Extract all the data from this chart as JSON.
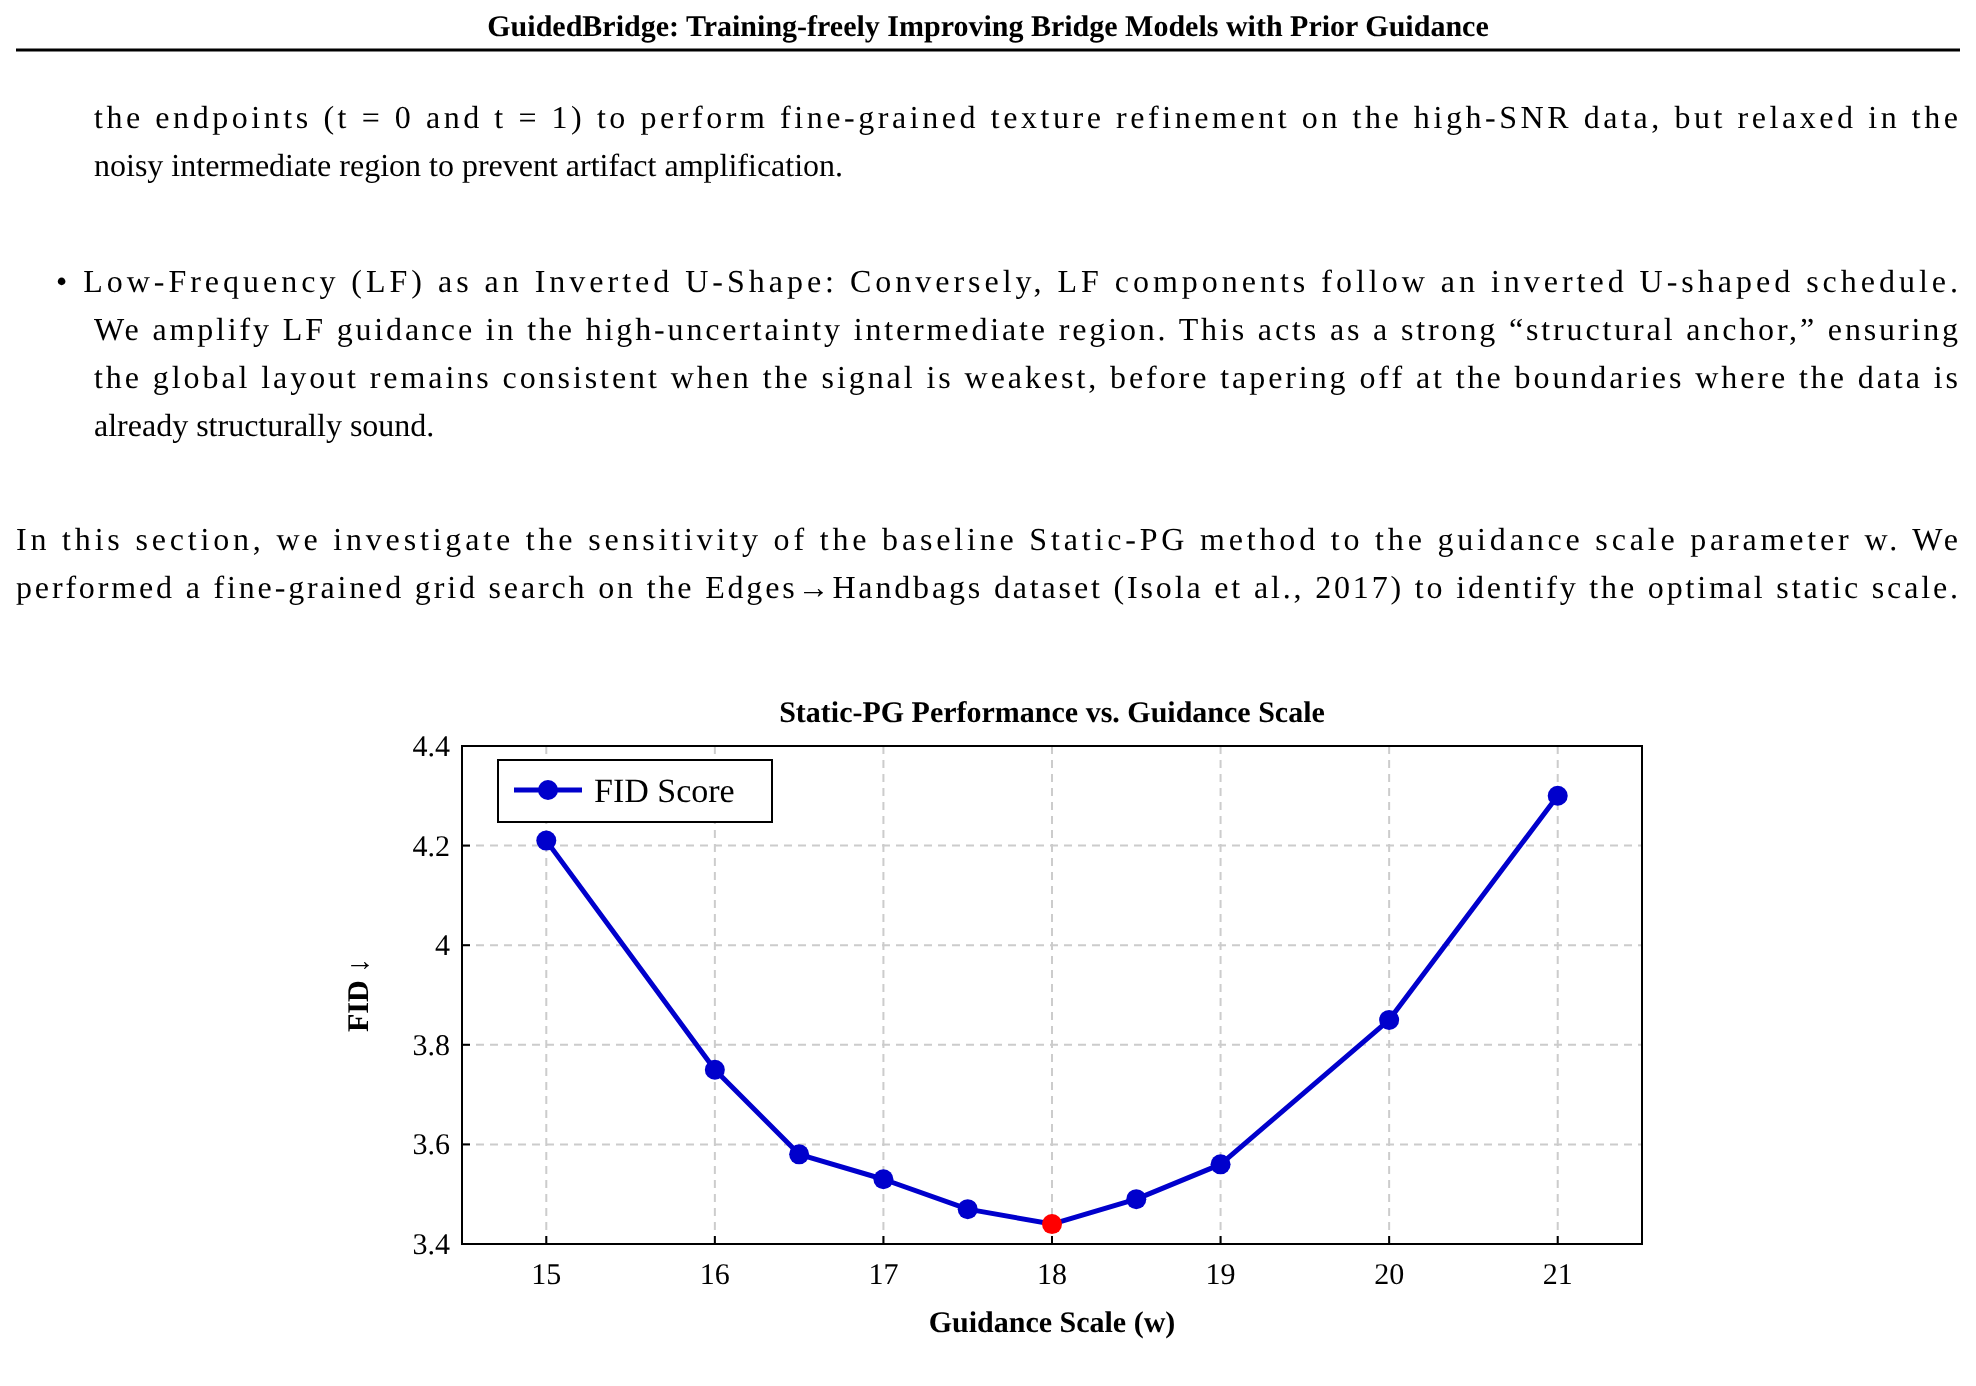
{
  "chart_data": {
    "type": "line",
    "title": "Static-PG Performance vs. Guidance Scale",
    "xlabel": "Guidance Scale (w)",
    "ylabel": "FID ↓",
    "annotations": [
      "GuidedBridge: Training-freely Improving Bridge Models with Prior Guidance",
      "the endpoints (t = 0 and t = 1) to perform fine-grained texture refinement on the high-SNR data, but relaxed in the",
      "noisy intermediate region to prevent artifact amplification.",
      "• Low-Frequency (LF) as an Inverted U-Shape: Conversely, LF components follow an inverted U-shaped schedule.",
      "We amplify LF guidance in the high-uncertainty intermediate region. This acts as a strong “structural anchor,” ensuring",
      "the global layout remains consistent when the signal is weakest, before tapering off at the boundaries where the data is",
      "already structurally sound.",
      "In this section, we investigate the sensitivity of the baseline Static-PG method to the guidance scale parameter w. We",
      "performed a fine-grained grid search on the Edges→Handbags dataset (Isola et al., 2017) to identify the optimal static scale."
    ],
    "x": [
      15,
      16,
      16.5,
      17,
      17.5,
      18,
      18.5,
      19,
      20,
      21
    ],
    "series": [
      {
        "name": "FID Score",
        "color": "#0000cc",
        "colors": [
          "#0000cc",
          "#0000cc",
          "#0000cc",
          "#0000cc",
          "#0000cc",
          "#ff0000",
          "#0000cc",
          "#0000cc",
          "#0000cc",
          "#0000cc"
        ],
        "values": [
          4.21,
          3.75,
          3.58,
          3.53,
          3.47,
          3.44,
          3.49,
          3.56,
          3.85,
          4.3
        ]
      }
    ],
    "xlim": [
      14.5,
      21.5
    ],
    "xticks": [
      15,
      16,
      17,
      18,
      19,
      20,
      21
    ],
    "ylim": [
      3.4,
      4.4
    ],
    "yticks": [
      3.4,
      3.6,
      3.8,
      4,
      4.2,
      4.4
    ],
    "grid": true,
    "legend": "top left",
    "marker": "circle",
    "line_style": "solid"
  }
}
